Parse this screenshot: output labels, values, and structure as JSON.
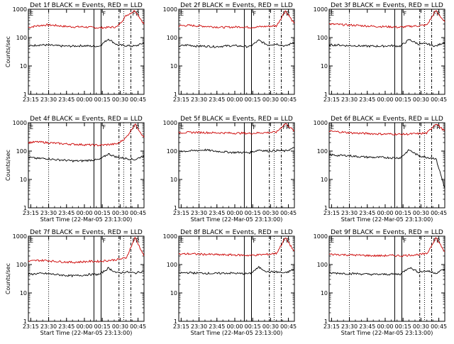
{
  "chart_data": {
    "type": "line",
    "layout": "3x3 grid",
    "line_colors": {
      "events": "#000000",
      "lld": "#cc0000"
    },
    "y_scale": "log",
    "ylim": [
      1,
      1000
    ],
    "y_ticks": [
      1,
      10,
      100,
      1000
    ],
    "y_tick_labels": [
      "1",
      "10",
      "100",
      "1000"
    ],
    "ylabel": "Counts/sec",
    "x_range": [
      "23:13",
      "00:50"
    ],
    "x_ticks": [
      "23:15",
      "23:30",
      "23:45",
      "00:00",
      "00:15",
      "00:30",
      "00:45"
    ],
    "x_tick_labels": [
      "23:15",
      "23:30",
      "23:45",
      "00:00",
      "00:15",
      "00:30",
      "00:45"
    ],
    "xlabel": "Start Time (22-Mar-05 23:13:00)",
    "markers": {
      "solid": [
        "00:08",
        "00:14"
      ],
      "dotted": [
        "00:33"
      ],
      "dashdot": [
        "00:29",
        "00:39"
      ],
      "labels": [
        {
          "text": "F",
          "at": "00:14"
        },
        {
          "text": "E",
          "at": "23:13"
        },
        {
          "text": "FR",
          "at": "00:39"
        }
      ]
    },
    "panels": [
      {
        "title": "Det 1f BLACK = Events, RED = LLD",
        "dotted_line": "23:30",
        "events": [
          50,
          55,
          55,
          52,
          50,
          50,
          52,
          50,
          50,
          90,
          55,
          52,
          50,
          65
        ],
        "lld": [
          230,
          260,
          280,
          270,
          250,
          240,
          240,
          230,
          220,
          230,
          240,
          600,
          900,
          300
        ],
        "show_ylabel": true,
        "show_xlabel": false
      },
      {
        "title": "Det 2f BLACK = Events, RED = LLD",
        "dotted_line": "23:30",
        "events": [
          50,
          55,
          50,
          50,
          48,
          50,
          52,
          50,
          48,
          80,
          55,
          60,
          50,
          70
        ],
        "lld": [
          260,
          270,
          260,
          250,
          240,
          230,
          235,
          240,
          230,
          240,
          250,
          260,
          900,
          300
        ],
        "show_ylabel": false,
        "show_xlabel": false
      },
      {
        "title": "Det 3f BLACK = Events, RED = LLD",
        "dotted_line": "23:30",
        "events": [
          55,
          55,
          52,
          52,
          50,
          50,
          50,
          52,
          50,
          85,
          60,
          60,
          50,
          70
        ],
        "lld": [
          300,
          290,
          280,
          270,
          260,
          250,
          245,
          240,
          230,
          250,
          260,
          280,
          900,
          350
        ],
        "show_ylabel": false,
        "show_xlabel": false
      },
      {
        "title": "Det 4f BLACK = Events, RED = LLD",
        "dotted_line": "23:30",
        "events": [
          60,
          55,
          55,
          50,
          48,
          45,
          45,
          48,
          50,
          80,
          60,
          55,
          50,
          70
        ],
        "lld": [
          200,
          210,
          200,
          190,
          180,
          175,
          170,
          165,
          160,
          170,
          180,
          300,
          900,
          300
        ],
        "show_ylabel": true,
        "show_xlabel": true
      },
      {
        "title": "Det 5f BLACK = Events, RED = LLD",
        "dotted_line": "23:30",
        "events": [
          100,
          100,
          105,
          110,
          100,
          95,
          90,
          90,
          88,
          110,
          100,
          105,
          100,
          130
        ],
        "lld": [
          450,
          450,
          460,
          450,
          440,
          440,
          430,
          430,
          420,
          440,
          450,
          470,
          950,
          500
        ],
        "show_ylabel": false,
        "show_xlabel": true
      },
      {
        "title": "Det 6f BLACK = Events, RED = LLD",
        "dotted_line": "23:30",
        "events": [
          75,
          70,
          70,
          65,
          62,
          60,
          60,
          58,
          58,
          110,
          70,
          60,
          55,
          5
        ],
        "lld": [
          500,
          480,
          450,
          430,
          420,
          410,
          400,
          400,
          390,
          400,
          410,
          430,
          950,
          500
        ],
        "show_ylabel": false,
        "show_xlabel": true
      },
      {
        "title": "Det 7f BLACK = Events, RED = LLD",
        "dotted_line": "23:30",
        "events": [
          45,
          48,
          48,
          45,
          42,
          40,
          42,
          45,
          45,
          75,
          50,
          55,
          50,
          60
        ],
        "lld": [
          130,
          140,
          140,
          130,
          125,
          120,
          125,
          130,
          130,
          140,
          150,
          170,
          900,
          200
        ],
        "show_ylabel": true,
        "show_xlabel": true
      },
      {
        "title": "Det 8f BLACK = Events, RED = LLD",
        "dotted_line": "23:30",
        "events": [
          50,
          52,
          50,
          50,
          48,
          50,
          50,
          48,
          48,
          80,
          55,
          55,
          50,
          70
        ],
        "lld": [
          230,
          240,
          235,
          230,
          225,
          220,
          220,
          215,
          210,
          220,
          230,
          250,
          900,
          280
        ],
        "show_ylabel": false,
        "show_xlabel": true
      },
      {
        "title": "Det 9f BLACK = Events, RED = LLD",
        "dotted_line": "23:30",
        "events": [
          50,
          50,
          48,
          48,
          46,
          45,
          45,
          46,
          46,
          80,
          55,
          60,
          50,
          70
        ],
        "lld": [
          230,
          225,
          220,
          215,
          210,
          205,
          205,
          210,
          205,
          215,
          225,
          240,
          900,
          280
        ],
        "show_ylabel": false,
        "show_xlabel": true
      }
    ]
  }
}
